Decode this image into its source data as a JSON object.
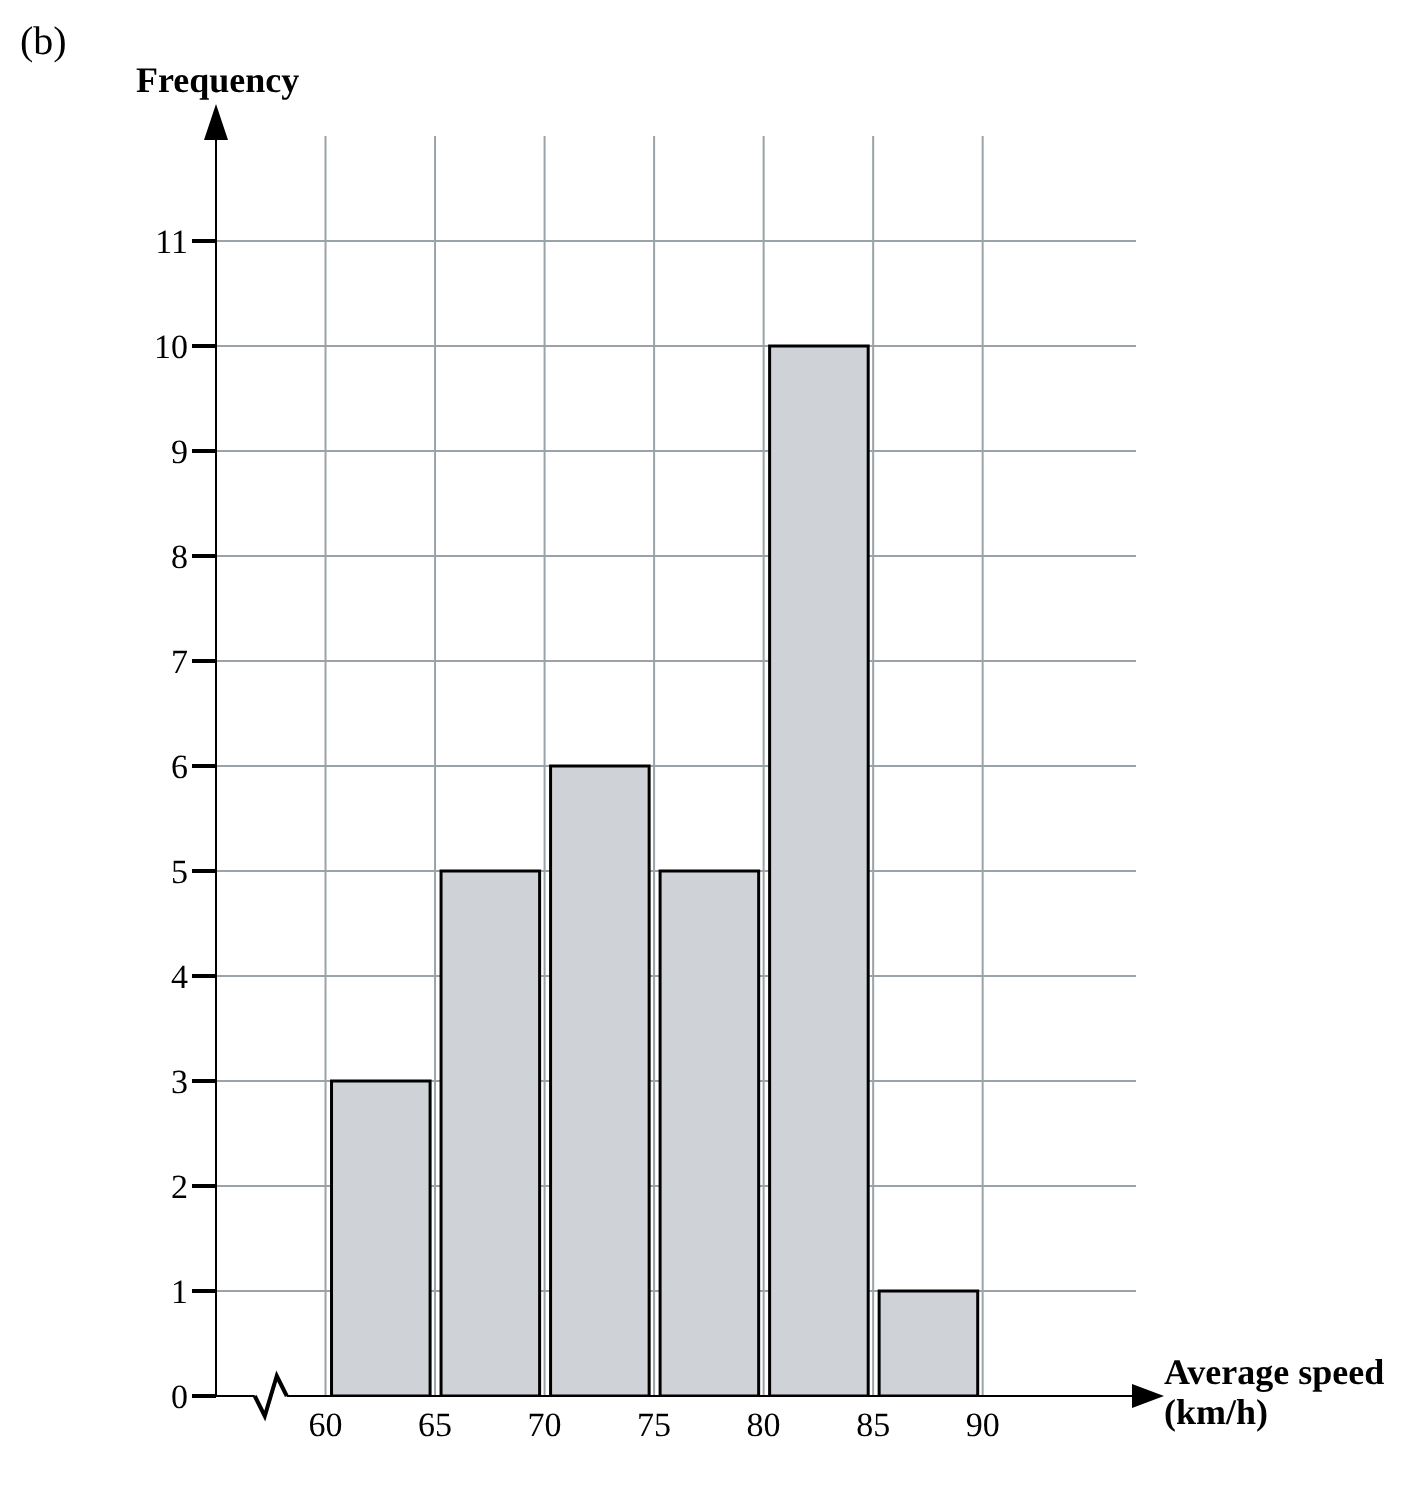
{
  "chart_data": {
    "type": "histogram",
    "xlabel": "Average speed (km/h)",
    "ylabel": "Frequency",
    "annotations": [
      "(b)"
    ],
    "bins": [
      60,
      65,
      70,
      75,
      80,
      85,
      90
    ],
    "values": [
      3,
      5,
      6,
      5,
      10,
      1
    ],
    "color": "#cfd3d8",
    "xlim": [
      55,
      97
    ],
    "xticks": [
      60,
      65,
      70,
      75,
      80,
      85,
      90
    ],
    "ylim": [
      0,
      12
    ],
    "yticks": [
      0,
      1,
      2,
      3,
      4,
      5,
      6,
      7,
      8,
      9,
      10,
      11
    ],
    "grid": true
  }
}
